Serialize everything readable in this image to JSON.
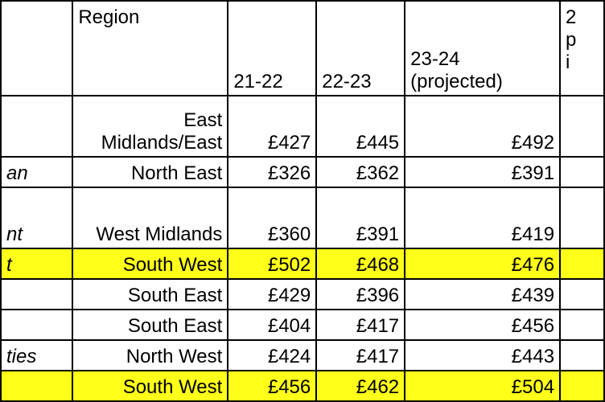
{
  "table": {
    "headers": {
      "name": "",
      "region": "Region",
      "y2122": "21-22",
      "y2223": "22-23",
      "y2324": "23-24 (projected)",
      "partial": "2 p i"
    },
    "rows": [
      {
        "name": "",
        "region": "East Midlands/East",
        "y2122": "£427",
        "y2223": "£445",
        "y2324": "£492",
        "highlight": false,
        "tall": true
      },
      {
        "name": "an",
        "region": "North East",
        "y2122": "£326",
        "y2223": "£362",
        "y2324": "£391",
        "highlight": false,
        "tall": false
      },
      {
        "name": "nt",
        "region": "West Midlands",
        "y2122": "£360",
        "y2223": "£391",
        "y2324": "£419",
        "highlight": false,
        "tall": true
      },
      {
        "name": "t",
        "region": "South West",
        "y2122": "£502",
        "y2223": "£468",
        "y2324": "£476",
        "highlight": true,
        "tall": false
      },
      {
        "name": "",
        "region": "South East",
        "y2122": "£429",
        "y2223": "£396",
        "y2324": "£439",
        "highlight": false,
        "tall": false
      },
      {
        "name": "",
        "region": "South East",
        "y2122": "£404",
        "y2223": "£417",
        "y2324": "£456",
        "highlight": false,
        "tall": false
      },
      {
        "name": "ties",
        "region": "North West",
        "y2122": "£424",
        "y2223": "£417",
        "y2324": "£443",
        "highlight": false,
        "tall": false
      },
      {
        "name": "",
        "region": "South West",
        "y2122": "£456",
        "y2223": "£462",
        "y2324": "£504",
        "highlight": true,
        "tall": false
      }
    ]
  },
  "colors": {
    "highlight": "#ffff1a",
    "border": "#000000"
  }
}
